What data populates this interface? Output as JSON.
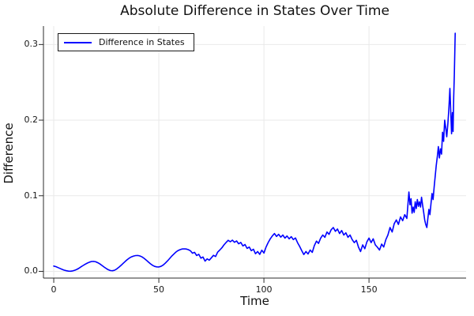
{
  "chart_data": {
    "type": "line",
    "title": "Absolute Difference in States Over Time",
    "xlabel": "Time",
    "ylabel": "Difference",
    "xlim": [
      -4.9,
      196.2
    ],
    "ylim": [
      -0.0089,
      0.3244
    ],
    "grid": true,
    "legend_position": "top-left",
    "colors": {
      "line": "#0000ff",
      "grid": "#e9e9e9",
      "axis": "#2b2b2b",
      "text": "#111111",
      "background": "#ffffff"
    },
    "xticks": [
      {
        "v": 0,
        "label": "0"
      },
      {
        "v": 50,
        "label": "50"
      },
      {
        "v": 100,
        "label": "100"
      },
      {
        "v": 150,
        "label": "150"
      }
    ],
    "yticks": [
      {
        "v": 0.0,
        "label": "0.0"
      },
      {
        "v": 0.1,
        "label": "0.1"
      },
      {
        "v": 0.2,
        "label": "0.2"
      },
      {
        "v": 0.3,
        "label": "0.3"
      }
    ],
    "series": [
      {
        "name": "Difference in States",
        "color": "#0000ff",
        "points": [
          [
            0,
            0.007
          ],
          [
            1,
            0.0062
          ],
          [
            2,
            0.005
          ],
          [
            3,
            0.0038
          ],
          [
            4,
            0.0026
          ],
          [
            5,
            0.0016
          ],
          [
            6,
            0.0008
          ],
          [
            7,
            0.0003
          ],
          [
            8,
            0.0002
          ],
          [
            9,
            0.0006
          ],
          [
            10,
            0.0014
          ],
          [
            11,
            0.0026
          ],
          [
            12,
            0.0042
          ],
          [
            13,
            0.006
          ],
          [
            14,
            0.0078
          ],
          [
            15,
            0.0095
          ],
          [
            16,
            0.011
          ],
          [
            17,
            0.0122
          ],
          [
            18,
            0.013
          ],
          [
            19,
            0.0131
          ],
          [
            20,
            0.0126
          ],
          [
            21,
            0.0114
          ],
          [
            22,
            0.0097
          ],
          [
            23,
            0.0077
          ],
          [
            24,
            0.0056
          ],
          [
            25,
            0.0037
          ],
          [
            26,
            0.0021
          ],
          [
            27,
            0.001
          ],
          [
            28,
            0.0008
          ],
          [
            29,
            0.0016
          ],
          [
            30,
            0.0032
          ],
          [
            31,
            0.0054
          ],
          [
            32,
            0.0079
          ],
          [
            33,
            0.0105
          ],
          [
            34,
            0.0131
          ],
          [
            35,
            0.0155
          ],
          [
            36,
            0.0176
          ],
          [
            37,
            0.0192
          ],
          [
            38,
            0.0203
          ],
          [
            39,
            0.0209
          ],
          [
            40,
            0.021
          ],
          [
            41,
            0.0204
          ],
          [
            42,
            0.0191
          ],
          [
            43,
            0.0172
          ],
          [
            44,
            0.0149
          ],
          [
            45,
            0.0124
          ],
          [
            46,
            0.01
          ],
          [
            47,
            0.008
          ],
          [
            48,
            0.0066
          ],
          [
            49,
            0.0059
          ],
          [
            50,
            0.0058
          ],
          [
            51,
            0.0066
          ],
          [
            52,
            0.0082
          ],
          [
            53,
            0.0106
          ],
          [
            54,
            0.0135
          ],
          [
            55,
            0.0166
          ],
          [
            56,
            0.0197
          ],
          [
            57,
            0.0226
          ],
          [
            58,
            0.0252
          ],
          [
            59,
            0.0272
          ],
          [
            60,
            0.0286
          ],
          [
            61,
            0.0295
          ],
          [
            62,
            0.0298
          ],
          [
            63,
            0.0295
          ],
          [
            64,
            0.0287
          ],
          [
            65,
            0.0272
          ],
          [
            66,
            0.024
          ],
          [
            67,
            0.0252
          ],
          [
            68,
            0.021
          ],
          [
            69,
            0.0226
          ],
          [
            70,
            0.0174
          ],
          [
            71,
            0.019
          ],
          [
            72,
            0.0136
          ],
          [
            73,
            0.0165
          ],
          [
            74,
            0.0148
          ],
          [
            75,
            0.018
          ],
          [
            76,
            0.0212
          ],
          [
            77,
            0.0196
          ],
          [
            78,
            0.0254
          ],
          [
            79,
            0.0282
          ],
          [
            80,
            0.0312
          ],
          [
            81,
            0.035
          ],
          [
            82,
            0.0382
          ],
          [
            83,
            0.041
          ],
          [
            84,
            0.0392
          ],
          [
            85,
            0.0412
          ],
          [
            86,
            0.0384
          ],
          [
            87,
            0.0402
          ],
          [
            88,
            0.0364
          ],
          [
            89,
            0.0382
          ],
          [
            90,
            0.0336
          ],
          [
            91,
            0.0355
          ],
          [
            92,
            0.0304
          ],
          [
            93,
            0.0322
          ],
          [
            94,
            0.0274
          ],
          [
            95,
            0.0292
          ],
          [
            96,
            0.0233
          ],
          [
            97,
            0.0262
          ],
          [
            98,
            0.0224
          ],
          [
            99,
            0.028
          ],
          [
            100,
            0.0242
          ],
          [
            101,
            0.032
          ],
          [
            102,
            0.038
          ],
          [
            103,
            0.043
          ],
          [
            104,
            0.0468
          ],
          [
            105,
            0.05
          ],
          [
            106,
            0.0462
          ],
          [
            107,
            0.049
          ],
          [
            108,
            0.0452
          ],
          [
            109,
            0.048
          ],
          [
            110,
            0.044
          ],
          [
            111,
            0.0468
          ],
          [
            112,
            0.043
          ],
          [
            113,
            0.0458
          ],
          [
            114,
            0.042
          ],
          [
            115,
            0.0442
          ],
          [
            116,
            0.038
          ],
          [
            117,
            0.033
          ],
          [
            118,
            0.0272
          ],
          [
            119,
            0.0222
          ],
          [
            120,
            0.0262
          ],
          [
            121,
            0.023
          ],
          [
            122,
            0.0282
          ],
          [
            123,
            0.0252
          ],
          [
            124,
            0.034
          ],
          [
            125,
            0.04
          ],
          [
            126,
            0.037
          ],
          [
            127,
            0.044
          ],
          [
            128,
            0.048
          ],
          [
            129,
            0.045
          ],
          [
            130,
            0.052
          ],
          [
            131,
            0.049
          ],
          [
            132,
            0.055
          ],
          [
            133,
            0.058
          ],
          [
            134,
            0.053
          ],
          [
            135,
            0.056
          ],
          [
            136,
            0.05
          ],
          [
            137,
            0.054
          ],
          [
            138,
            0.048
          ],
          [
            139,
            0.051
          ],
          [
            140,
            0.045
          ],
          [
            141,
            0.048
          ],
          [
            142,
            0.042
          ],
          [
            143,
            0.038
          ],
          [
            144,
            0.041
          ],
          [
            145,
            0.032
          ],
          [
            146,
            0.0262
          ],
          [
            147,
            0.035
          ],
          [
            148,
            0.03
          ],
          [
            149,
            0.039
          ],
          [
            150,
            0.044
          ],
          [
            151,
            0.038
          ],
          [
            152,
            0.043
          ],
          [
            153,
            0.035
          ],
          [
            154,
            0.032
          ],
          [
            155,
            0.0282
          ],
          [
            156,
            0.036
          ],
          [
            157,
            0.0322
          ],
          [
            158,
            0.042
          ],
          [
            159,
            0.048
          ],
          [
            160,
            0.058
          ],
          [
            161,
            0.052
          ],
          [
            162,
            0.063
          ],
          [
            163,
            0.068
          ],
          [
            164,
            0.062
          ],
          [
            165,
            0.072
          ],
          [
            166,
            0.067
          ],
          [
            167,
            0.075
          ],
          [
            168,
            0.07
          ],
          [
            169,
            0.105
          ],
          [
            169.5,
            0.088
          ],
          [
            170,
            0.096
          ],
          [
            170.5,
            0.077
          ],
          [
            171,
            0.085
          ],
          [
            171.5,
            0.078
          ],
          [
            172,
            0.092
          ],
          [
            172.5,
            0.083
          ],
          [
            173,
            0.095
          ],
          [
            173.5,
            0.086
          ],
          [
            174,
            0.092
          ],
          [
            174.5,
            0.085
          ],
          [
            175,
            0.098
          ],
          [
            175.5,
            0.088
          ],
          [
            176,
            0.078
          ],
          [
            176.5,
            0.068
          ],
          [
            177,
            0.062
          ],
          [
            177.5,
            0.058
          ],
          [
            178,
            0.07
          ],
          [
            178.5,
            0.082
          ],
          [
            179,
            0.075
          ],
          [
            179.5,
            0.09
          ],
          [
            180,
            0.103
          ],
          [
            180.5,
            0.095
          ],
          [
            181,
            0.112
          ],
          [
            181.5,
            0.126
          ],
          [
            182,
            0.14
          ],
          [
            182.5,
            0.152
          ],
          [
            183,
            0.165
          ],
          [
            183.5,
            0.15
          ],
          [
            184,
            0.162
          ],
          [
            184.5,
            0.155
          ],
          [
            185,
            0.184
          ],
          [
            185.5,
            0.172
          ],
          [
            186,
            0.2
          ],
          [
            186.5,
            0.19
          ],
          [
            187,
            0.178
          ],
          [
            187.5,
            0.195
          ],
          [
            188,
            0.215
          ],
          [
            188.5,
            0.242
          ],
          [
            189,
            0.205
          ],
          [
            189.3,
            0.182
          ],
          [
            189.7,
            0.21
          ],
          [
            190,
            0.185
          ],
          [
            190.3,
            0.23
          ],
          [
            190.6,
            0.26
          ],
          [
            191,
            0.315
          ]
        ]
      }
    ]
  }
}
